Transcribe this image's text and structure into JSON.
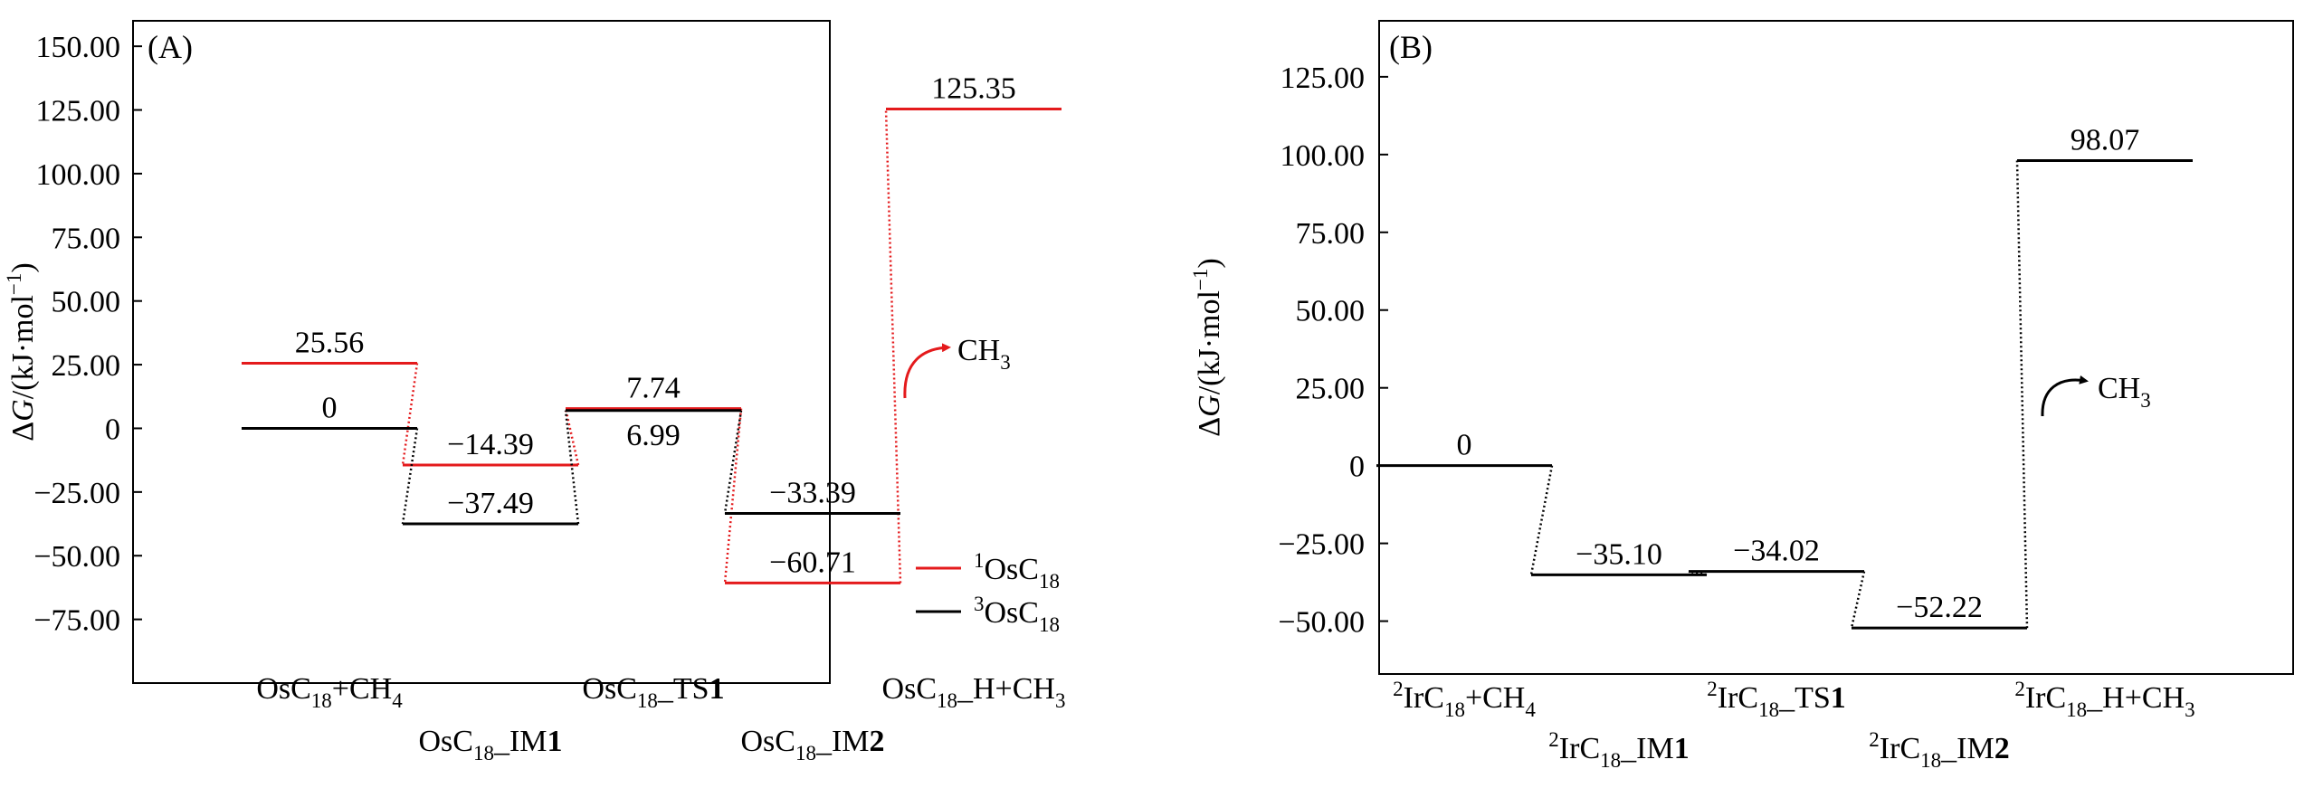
{
  "y_axis_label_prefix": "ΔG/(kJ·mol",
  "y_axis_label_sup": "−1",
  "y_axis_label_suffix": ")",
  "chart_data": [
    {
      "type": "energy-profile",
      "panel_label": "(A)",
      "ylim": [
        -100,
        160
      ],
      "yticks": [
        150,
        125,
        100,
        75,
        50,
        25,
        0,
        -25,
        -50,
        -75
      ],
      "ytick_labels": [
        "150.00",
        "125.00",
        "100.00",
        "75.00",
        "50.00",
        "25.00",
        "0",
        "−25.00",
        "−50.00",
        "−75.00"
      ],
      "grid": false,
      "legend_position": "bottom-right",
      "categories": [
        {
          "parts": [
            [
              "",
              "OsC"
            ],
            [
              "sub",
              "18"
            ],
            [
              "",
              "+CH"
            ],
            [
              "sub",
              "4"
            ]
          ],
          "row": "upper"
        },
        {
          "parts": [
            [
              "",
              "OsC"
            ],
            [
              "sub",
              "18"
            ],
            [
              "",
              "_IM"
            ],
            [
              "b",
              "1"
            ]
          ],
          "row": "lower"
        },
        {
          "parts": [
            [
              "",
              "OsC"
            ],
            [
              "sub",
              "18"
            ],
            [
              "",
              "_TS"
            ],
            [
              "b",
              "1"
            ]
          ],
          "row": "upper"
        },
        {
          "parts": [
            [
              "",
              "OsC"
            ],
            [
              "sub",
              "18"
            ],
            [
              "",
              "_IM"
            ],
            [
              "b",
              "2"
            ]
          ],
          "row": "lower"
        },
        {
          "parts": [
            [
              "",
              "OsC"
            ],
            [
              "sub",
              "18"
            ],
            [
              "",
              "_H+CH"
            ],
            [
              "sub",
              "3"
            ]
          ],
          "row": "upper"
        }
      ],
      "series": [
        {
          "legend": [
            [
              "sup",
              "1"
            ],
            [
              "",
              "OsC"
            ],
            [
              "sub",
              "18"
            ]
          ],
          "color": "#e41a1c",
          "values": [
            25.56,
            -14.39,
            7.74,
            -60.71,
            125.35
          ],
          "labels": [
            "25.56",
            "−14.39",
            "7.74",
            "−60.71",
            "125.35"
          ],
          "label_side": [
            "above",
            "above",
            "above",
            "above",
            "above"
          ]
        },
        {
          "legend": [
            [
              "sup",
              "3"
            ],
            [
              "",
              "OsC"
            ],
            [
              "sub",
              "18"
            ]
          ],
          "color": "#000000",
          "values": [
            0,
            -37.49,
            6.99,
            -33.39,
            null
          ],
          "labels": [
            "0",
            "−37.49",
            "6.99",
            "−33.39",
            ""
          ],
          "label_side": [
            "above",
            "above",
            "below",
            "above",
            "above"
          ]
        }
      ],
      "annotation": {
        "parts": [
          [
            "",
            "CH"
          ],
          [
            "sub",
            "3"
          ]
        ],
        "color": "#e41a1c"
      }
    },
    {
      "type": "energy-profile",
      "panel_label": "(B)",
      "ylim": [
        -67,
        143
      ],
      "yticks": [
        125,
        100,
        75,
        50,
        25,
        0,
        -25,
        -50
      ],
      "ytick_labels": [
        "125.00",
        "100.00",
        "75.00",
        "50.00",
        "25.00",
        "0",
        "−25.00",
        "−50.00"
      ],
      "grid": false,
      "categories": [
        {
          "parts": [
            [
              "sup",
              "2"
            ],
            [
              "",
              "IrC"
            ],
            [
              "sub",
              "18"
            ],
            [
              "",
              "+CH"
            ],
            [
              "sub",
              "4"
            ]
          ],
          "row": "upper"
        },
        {
          "parts": [
            [
              "sup",
              "2"
            ],
            [
              "",
              "IrC"
            ],
            [
              "sub",
              "18"
            ],
            [
              "",
              "_IM"
            ],
            [
              "b",
              "1"
            ]
          ],
          "row": "lower"
        },
        {
          "parts": [
            [
              "sup",
              "2"
            ],
            [
              "",
              "IrC"
            ],
            [
              "sub",
              "18"
            ],
            [
              "",
              "_TS"
            ],
            [
              "b",
              "1"
            ]
          ],
          "row": "upper"
        },
        {
          "parts": [
            [
              "sup",
              "2"
            ],
            [
              "",
              "IrC"
            ],
            [
              "sub",
              "18"
            ],
            [
              "",
              "_IM"
            ],
            [
              "b",
              "2"
            ]
          ],
          "row": "lower"
        },
        {
          "parts": [
            [
              "sup",
              "2"
            ],
            [
              "",
              "IrC"
            ],
            [
              "sub",
              "18"
            ],
            [
              "",
              "_H+CH"
            ],
            [
              "sub",
              "3"
            ]
          ],
          "row": "upper"
        }
      ],
      "series": [
        {
          "color": "#000000",
          "values": [
            0,
            -35.1,
            -34.02,
            -52.22,
            98.07
          ],
          "labels": [
            "0",
            "−35.10",
            "−34.02",
            "−52.22",
            "98.07"
          ],
          "label_side": [
            "above",
            "above",
            "above",
            "above",
            "above"
          ]
        }
      ],
      "annotation": {
        "parts": [
          [
            "",
            "CH"
          ],
          [
            "sub",
            "3"
          ]
        ],
        "color": "#000000"
      }
    }
  ]
}
